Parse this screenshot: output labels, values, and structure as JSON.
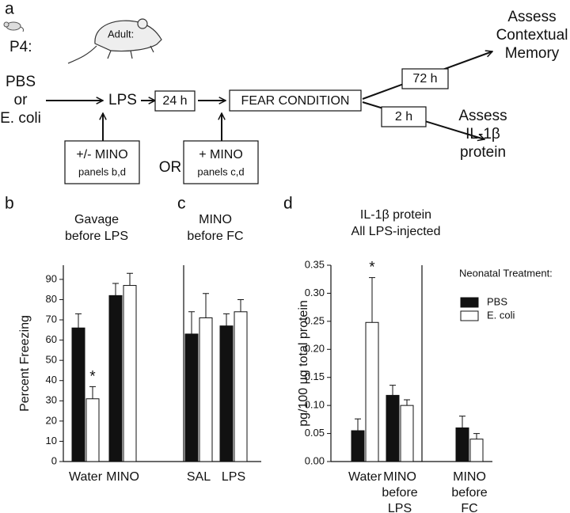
{
  "diagram": {
    "panel_label": "a",
    "p4": "P4:",
    "adult": "Adult:",
    "injection": "PBS\nor\nE. coli",
    "lps": "LPS",
    "delay_24h": "24 h",
    "fear": "FEAR CONDITION",
    "delay_72h": "72 h",
    "delay_2h": "2 h",
    "assess_memory": "Assess\nContextual\nMemory",
    "assess_il": "Assess\nIL-1β\nprotein",
    "mino_pre": {
      "label": "+/- MINO",
      "panels": "panels b,d"
    },
    "or": "OR",
    "mino_fc": {
      "label": "+ MINO",
      "panels": "panels c,d"
    }
  },
  "chart_data": [
    {
      "type": "bar",
      "panel_label": "b",
      "title": "Gavage\nbefore LPS",
      "ylabel": "Percent Freezing",
      "categories": [
        "Water",
        "MINO"
      ],
      "series": [
        {
          "color": "#111111",
          "values": [
            66,
            82
          ],
          "errors": [
            7,
            6
          ]
        },
        {
          "color": "#ffffff",
          "values": [
            31,
            87
          ],
          "errors": [
            6,
            6
          ]
        }
      ],
      "annotations": [
        "*"
      ],
      "ylim": [
        0,
        97
      ],
      "yticks": [
        0,
        10,
        20,
        30,
        40,
        50,
        60,
        70,
        80,
        90
      ]
    },
    {
      "type": "bar",
      "panel_label": "c",
      "title": "MINO\nbefore FC",
      "categories": [
        "SAL",
        "LPS"
      ],
      "series": [
        {
          "color": "#111111",
          "values": [
            63,
            67
          ],
          "errors": [
            11,
            6
          ]
        },
        {
          "color": "#ffffff",
          "values": [
            71,
            74
          ],
          "errors": [
            12,
            6
          ]
        }
      ],
      "ylim": [
        0,
        97
      ]
    },
    {
      "type": "bar",
      "panel_label": "d",
      "title": "IL-1β protein\nAll LPS-injected",
      "ylabel": "pg/100 µg total protein",
      "categories": [
        "Water",
        "MINO\nbefore\nLPS",
        "MINO\nbefore\nFC"
      ],
      "series": [
        {
          "name": "PBS",
          "color": "#111111",
          "values": [
            0.055,
            0.118,
            0.06
          ],
          "errors": [
            0.021,
            0.018,
            0.021
          ]
        },
        {
          "name": "E. coli",
          "color": "#ffffff",
          "values": [
            0.248,
            0.1,
            0.04
          ],
          "errors": [
            0.08,
            0.01,
            0.01
          ]
        }
      ],
      "annotations": [
        "*"
      ],
      "legend_title": "Neonatal Treatment:",
      "legend": "upper right",
      "ylim": [
        0,
        0.35
      ],
      "yticks": [
        {
          "value": 0,
          "label": "0.00"
        },
        {
          "value": 0.05,
          "label": "0.05"
        },
        {
          "value": 0.1,
          "label": "0.10"
        },
        {
          "value": 0.15,
          "label": "0.15"
        },
        {
          "value": 0.2,
          "label": "0.20"
        },
        {
          "value": 0.25,
          "label": "0.25"
        },
        {
          "value": 0.3,
          "label": "0.30"
        },
        {
          "value": 0.35,
          "label": "0.35"
        }
      ]
    }
  ]
}
